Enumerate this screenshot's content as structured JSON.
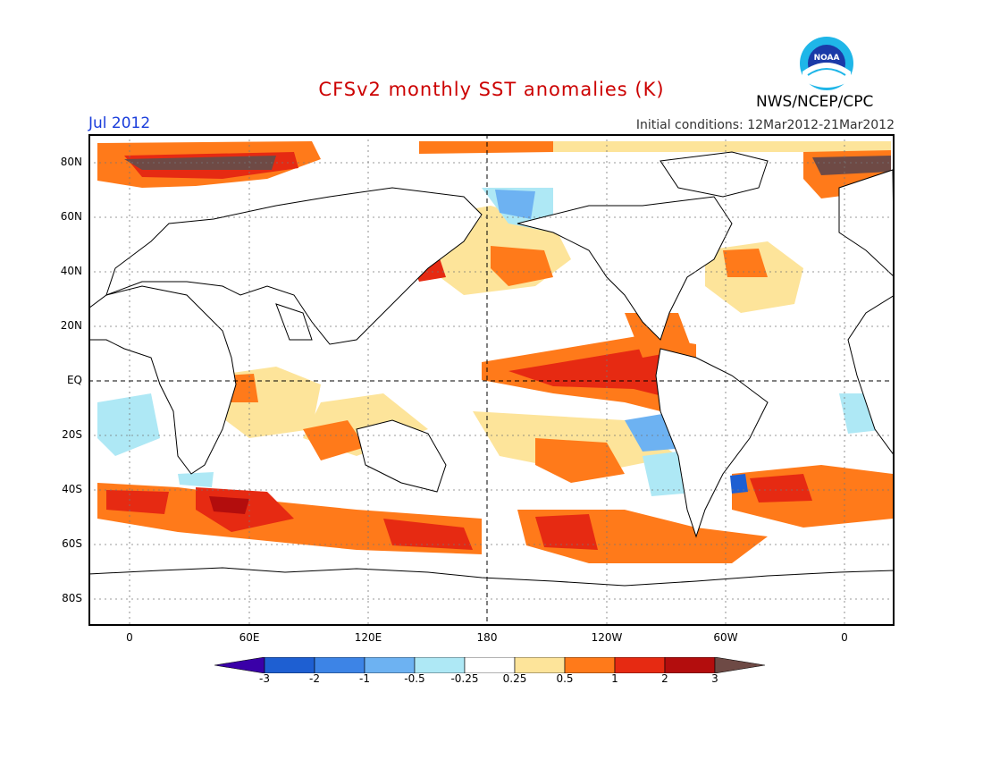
{
  "header": {
    "title": "CFSv2 monthly SST anomalies (K)",
    "month": "Jul 2012",
    "initial_conditions": "Initial conditions: 12Mar2012-21Mar2012",
    "agency": "NWS/NCEP/CPC",
    "logo_text": "NOAA"
  },
  "colors": {
    "title": "#cc0000",
    "month": "#1a3ddb",
    "land": "#ffffff",
    "outline": "#000000"
  },
  "axes": {
    "y_ticks": [
      "80N",
      "60N",
      "40N",
      "20N",
      "EQ",
      "20S",
      "40S",
      "60S",
      "80S"
    ],
    "x_ticks": [
      "0",
      "60E",
      "120E",
      "180",
      "120W",
      "60W",
      "0"
    ]
  },
  "colorbar": {
    "labels": [
      "-3",
      "-2",
      "-1",
      "-0.5",
      "-0.25",
      "0.25",
      "0.5",
      "1",
      "2",
      "3"
    ],
    "bins": [
      {
        "color": "#3a00a8",
        "kind": "arrow-left"
      },
      {
        "color": "#1e5fd2"
      },
      {
        "color": "#3d84e6"
      },
      {
        "color": "#6db2f2"
      },
      {
        "color": "#aee8f5"
      },
      {
        "color": "#ffffff"
      },
      {
        "color": "#fde49a"
      },
      {
        "color": "#ff7a1a"
      },
      {
        "color": "#e62a12"
      },
      {
        "color": "#b30d0d"
      },
      {
        "color": "#6e4a45",
        "kind": "arrow-right"
      }
    ]
  }
}
